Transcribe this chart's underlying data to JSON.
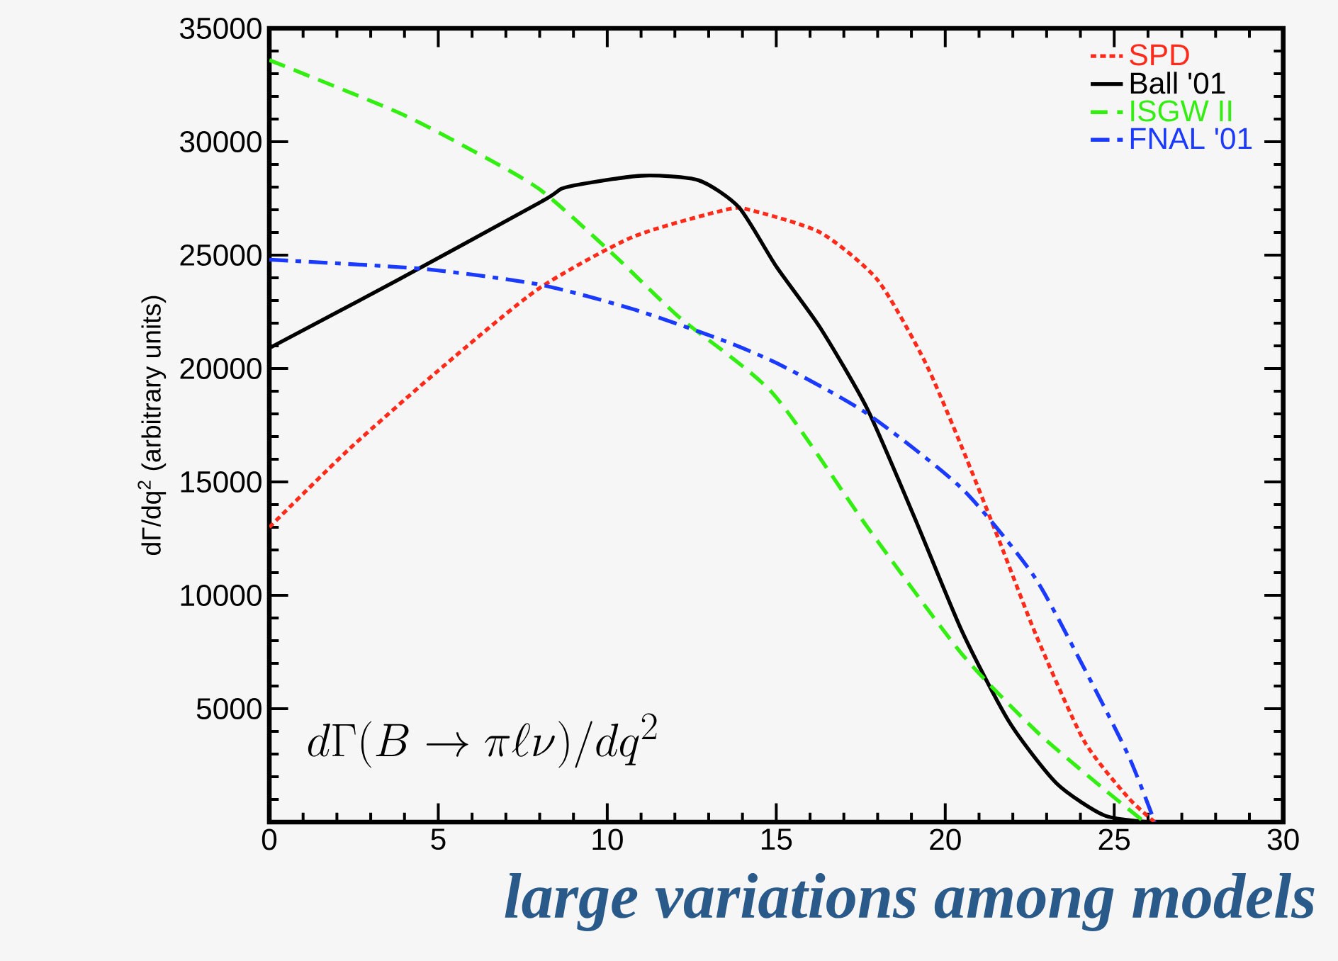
{
  "chart_data": {
    "type": "line",
    "ylabel": "dΓ/dq$^{2}$ (arbitrary units)",
    "xlim": [
      0,
      30
    ],
    "xticks": [
      0,
      5,
      10,
      15,
      20,
      25,
      30
    ],
    "ylim": [
      0,
      35000
    ],
    "yticks": [
      {
        "value": 0,
        "label": null
      },
      5000,
      10000,
      15000,
      20000,
      25000,
      30000,
      35000
    ],
    "grid": false,
    "legend": "top right",
    "annotations": [
      "d\\Gamma(B \\to \\pi\\ell\\nu)/dq^2",
      "large variations among models"
    ],
    "series": [
      {
        "name": "SPD",
        "color": "#ff2a1a",
        "line_style": "dotted",
        "x": [
          0,
          2.4,
          5.15,
          7.95,
          10.75,
          13.5,
          14.2,
          16.3,
          18.0,
          19.4,
          20.5,
          21.6,
          22.7,
          24.1,
          25.4,
          26.2
        ],
        "values": [
          13000,
          16500,
          20100,
          23500,
          25800,
          27000,
          27000,
          26000,
          23900,
          20300,
          16500,
          12400,
          8200,
          3600,
          1100,
          0
        ]
      },
      {
        "name": "Ball '01",
        "color": "#000000",
        "line_style": "solid",
        "x": [
          0,
          3.8,
          8.1,
          8.8,
          11.0,
          12.7,
          13.9,
          15.0,
          16.3,
          17.7,
          19.1,
          20.5,
          21.9,
          23.3,
          24.7,
          26.0
        ],
        "values": [
          20900,
          23900,
          27400,
          28000,
          28500,
          28300,
          27100,
          24500,
          21800,
          18200,
          13400,
          8400,
          4400,
          1700,
          300,
          0
        ]
      },
      {
        "name": "ISGW II",
        "color": "#33ee11",
        "line_style": "dashed",
        "x": [
          0,
          3.8,
          5.9,
          8.0,
          10.2,
          12.1,
          14.9,
          17.7,
          20.5,
          22.7,
          24.7,
          25.9
        ],
        "values": [
          33600,
          31300,
          29700,
          27900,
          25000,
          22300,
          18900,
          13000,
          7400,
          4000,
          1450,
          0
        ]
      },
      {
        "name": "FNAL '01",
        "color": "#1a3aff",
        "line_style": "dashdot",
        "x": [
          0,
          4.5,
          8.0,
          10.8,
          13.5,
          15.2,
          17.7,
          20.5,
          22.6,
          24.0,
          25.4,
          26.2
        ],
        "values": [
          24800,
          24400,
          23700,
          22600,
          21200,
          20100,
          18000,
          14700,
          10900,
          7100,
          3000,
          0
        ]
      }
    ]
  }
}
